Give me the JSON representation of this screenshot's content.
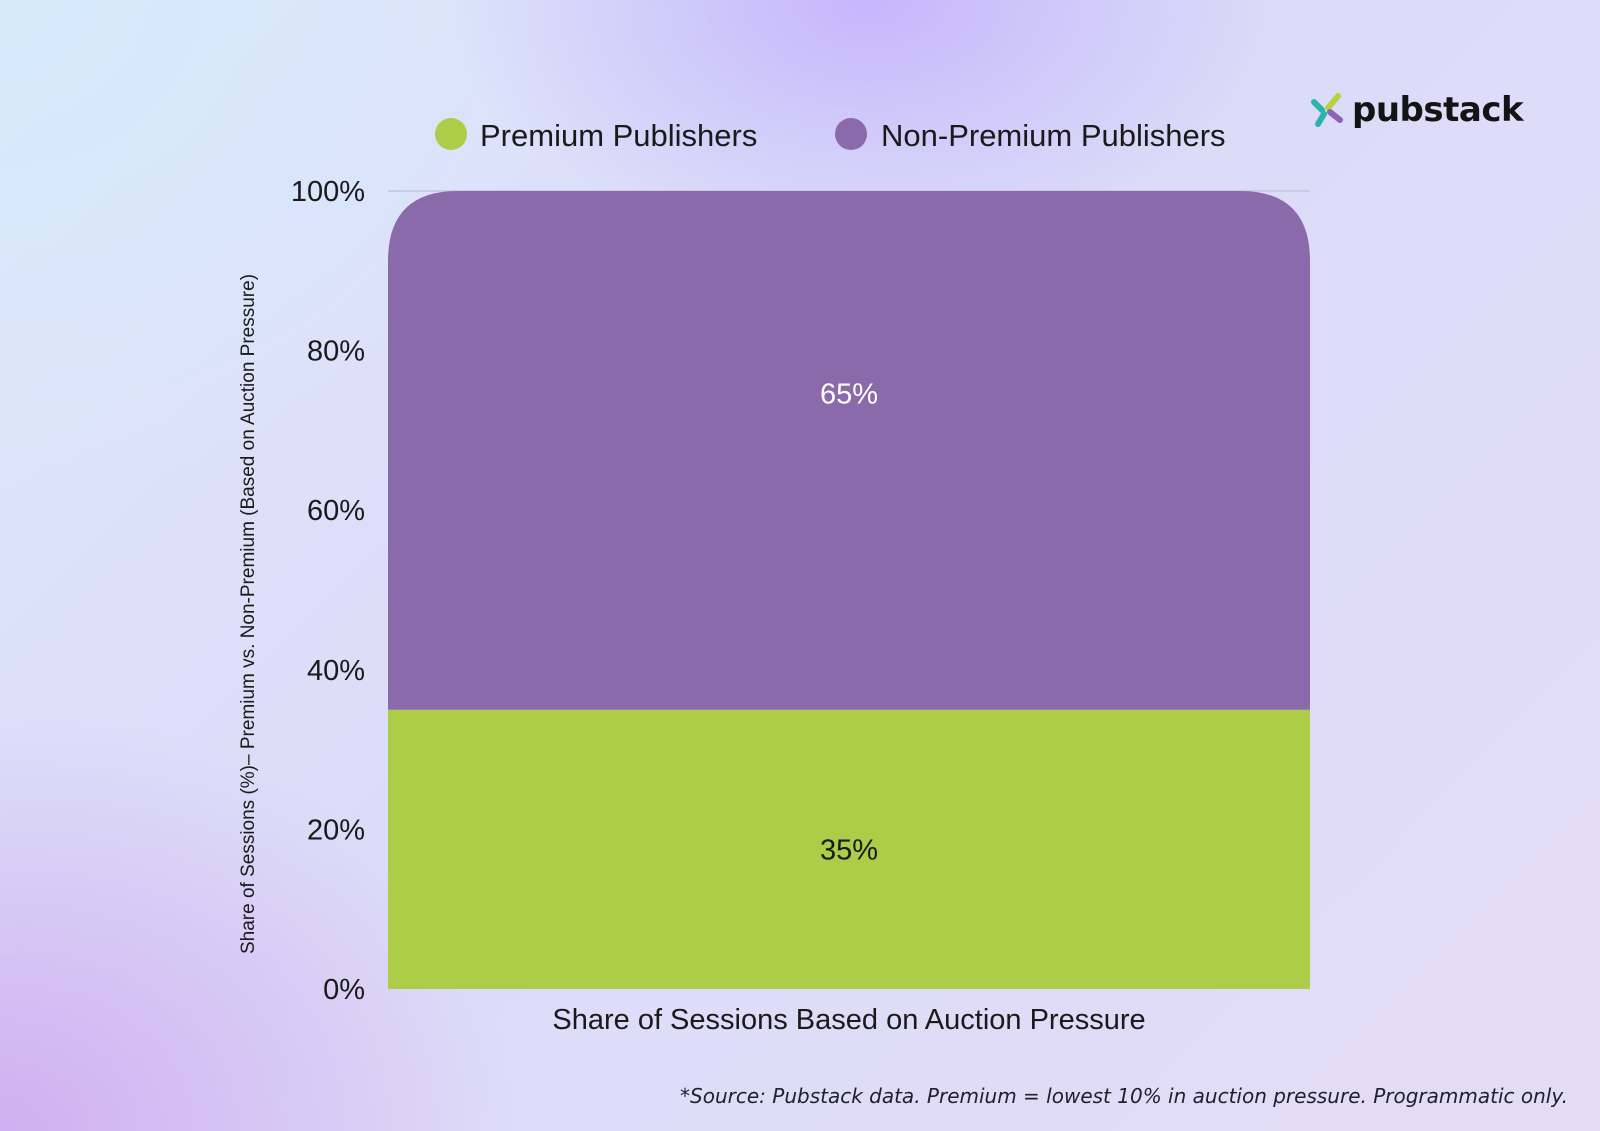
{
  "brand": {
    "name": "pubstack",
    "colors": [
      "#b6d33c",
      "#8b63b8",
      "#2bb3b0"
    ]
  },
  "colors": {
    "premium": "#adcc47",
    "non_premium": "#8b6aab",
    "premium_label_text": "#1a1a1a",
    "non_premium_label_text": "#ffffff",
    "axis_text": "#1a1a1a"
  },
  "footnote": "*Source: Pubstack data. Premium = lowest 10% in auction pressure. Programmatic only.",
  "chart_data": {
    "type": "bar",
    "stacked": true,
    "categories": [
      ""
    ],
    "series": [
      {
        "name": "Premium Publishers",
        "values": [
          35
        ],
        "label": "35%"
      },
      {
        "name": "Non-Premium Publishers",
        "values": [
          65
        ],
        "label": "65%"
      }
    ],
    "xlabel": "Share of Sessions Based on Auction Pressure",
    "ylabel": "Share of Sessions (%)– Premium vs. Non-Premium (Based on Auction Pressure)",
    "ylim": [
      0,
      100
    ],
    "yticks": [
      "0%",
      "20%",
      "40%",
      "60%",
      "80%",
      "100%"
    ],
    "legend_position": "top",
    "grid": false
  }
}
